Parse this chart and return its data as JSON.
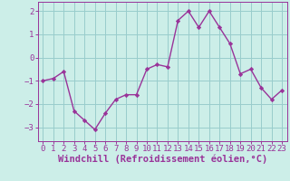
{
  "x": [
    0,
    1,
    2,
    3,
    4,
    5,
    6,
    7,
    8,
    9,
    10,
    11,
    12,
    13,
    14,
    15,
    16,
    17,
    18,
    19,
    20,
    21,
    22,
    23
  ],
  "y": [
    -1.0,
    -0.9,
    -0.6,
    -2.3,
    -2.7,
    -3.1,
    -2.4,
    -1.8,
    -1.6,
    -1.6,
    -0.5,
    -0.3,
    -0.4,
    1.6,
    2.0,
    1.3,
    2.0,
    1.3,
    0.6,
    -0.7,
    -0.5,
    -1.3,
    -1.8,
    -1.4
  ],
  "line_color": "#993399",
  "marker": "D",
  "marker_size": 2.2,
  "bg_color": "#cceee8",
  "grid_color": "#99cccc",
  "xlabel": "Windchill (Refroidissement éolien,°C)",
  "xlabel_color": "#993399",
  "ylim": [
    -3.6,
    2.4
  ],
  "xlim": [
    -0.5,
    23.5
  ],
  "yticks": [
    -3,
    -2,
    -1,
    0,
    1,
    2
  ],
  "xticks": [
    0,
    1,
    2,
    3,
    4,
    5,
    6,
    7,
    8,
    9,
    10,
    11,
    12,
    13,
    14,
    15,
    16,
    17,
    18,
    19,
    20,
    21,
    22,
    23
  ],
  "tick_color": "#993399",
  "tick_fontsize": 6.5,
  "xlabel_fontsize": 7.5,
  "linewidth": 1.0
}
